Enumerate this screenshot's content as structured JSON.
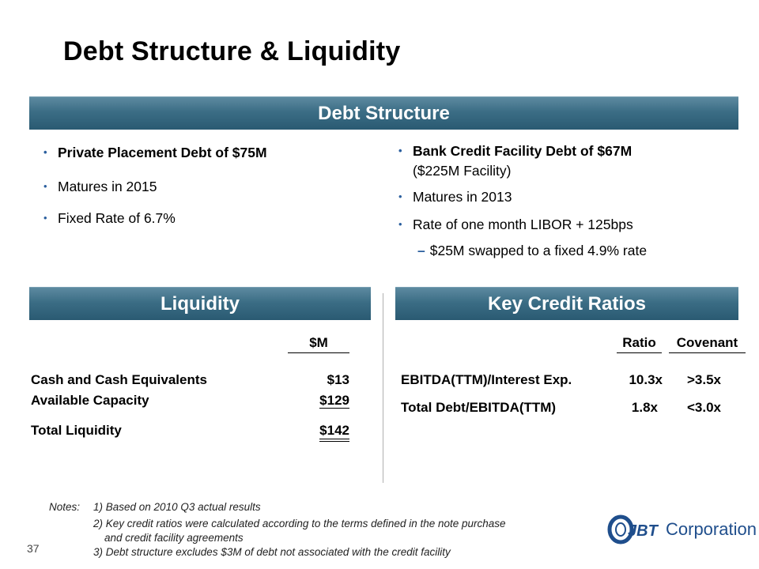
{
  "title": "Debt Structure & Liquidity",
  "debt_structure": {
    "header": "Debt Structure",
    "left": {
      "b1": "Private Placement Debt of $75M",
      "b2": "Matures in 2015",
      "b3": "Fixed Rate of 6.7%"
    },
    "right": {
      "b1_line1": "Bank Credit Facility Debt of $67M",
      "b1_line2": "($225M Facility)",
      "b2": "Matures in 2013",
      "b3": "Rate of one month LIBOR + 125bps",
      "sub1": "$25M swapped to a fixed 4.9% rate"
    }
  },
  "liquidity": {
    "header": "Liquidity",
    "column_header": "$M",
    "rows": [
      {
        "label": "Cash and Cash Equivalents",
        "value": "$13"
      },
      {
        "label": "Available Capacity",
        "value": "$129"
      }
    ],
    "total": {
      "label": "Total Liquidity",
      "value": "$142"
    }
  },
  "ratios": {
    "header": "Key Credit Ratios",
    "col_ratio": "Ratio",
    "col_covenant": "Covenant",
    "rows": [
      {
        "label": "EBITDA(TTM)/Interest Exp.",
        "ratio": "10.3x",
        "covenant": ">3.5x"
      },
      {
        "label": "Total Debt/EBITDA(TTM)",
        "ratio": "1.8x",
        "covenant": "<3.0x"
      }
    ]
  },
  "notes": {
    "label": "Notes:",
    "n1": "1)  Based on 2010 Q3 actual results",
    "n2a": "2) Key credit ratios were calculated according to the terms defined in the note purchase",
    "n2b": "and credit facility agreements",
    "n3": "3) Debt structure excludes $3M of debt not associated with the credit facility"
  },
  "page_number": "37",
  "logo": {
    "mark": "JBT",
    "text": "Corporation"
  },
  "colors": {
    "banner": "#3b6d85",
    "bullet": "#2b5f9e",
    "logo_blue": "#1f4e8c"
  }
}
